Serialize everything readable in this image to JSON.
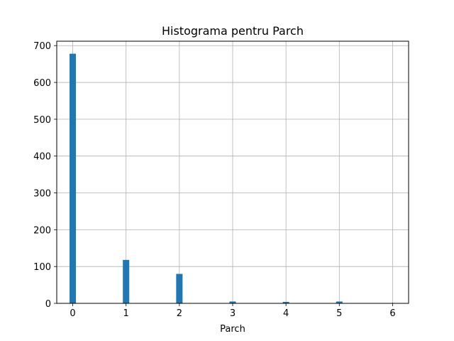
{
  "chart_data": {
    "type": "bar",
    "title": "Histograma pentru Parch",
    "xlabel": "Parch",
    "ylabel": "",
    "x_ticks": [
      "0",
      "1",
      "2",
      "3",
      "4",
      "5",
      "6"
    ],
    "y_ticks": [
      "0",
      "100",
      "200",
      "300",
      "400",
      "500",
      "600",
      "700"
    ],
    "xlim": [
      -0.3,
      6.3
    ],
    "ylim": [
      0,
      712
    ],
    "grid": true,
    "bar_color": "#1f77b4",
    "bin_width": 0.12,
    "bins": [
      {
        "x": 0,
        "value": 678
      },
      {
        "x": 1,
        "value": 118
      },
      {
        "x": 2,
        "value": 80
      },
      {
        "x": 3,
        "value": 5
      },
      {
        "x": 4,
        "value": 4
      },
      {
        "x": 5,
        "value": 5
      },
      {
        "x": 6,
        "value": 1
      }
    ]
  }
}
